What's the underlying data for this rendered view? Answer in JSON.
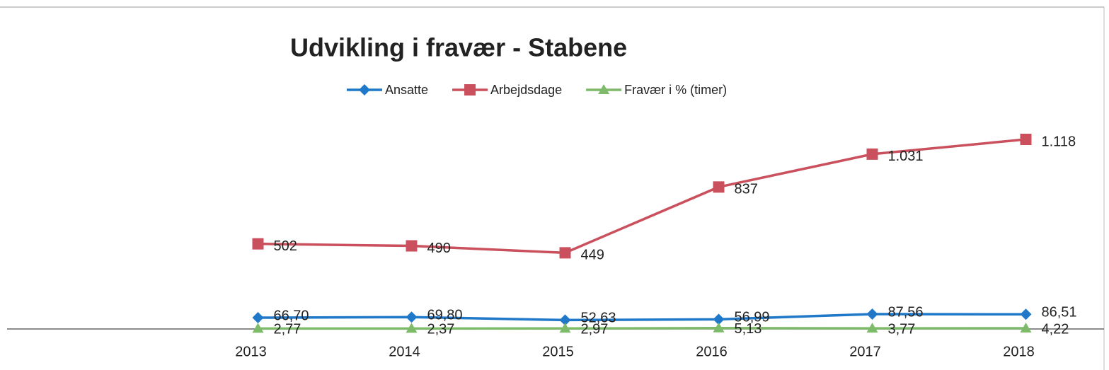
{
  "chart_data": {
    "type": "line",
    "title": "Udvikling i fravær -  Stabene",
    "categories": [
      "2013",
      "2014",
      "2015",
      "2016",
      "2017",
      "2018"
    ],
    "series": [
      {
        "name": "Ansatte",
        "color": "#1f78c8",
        "marker": "diamond",
        "values": [
          66.7,
          69.8,
          52.63,
          56.99,
          87.56,
          86.51
        ],
        "value_labels": [
          "66,70",
          "69,80",
          "52,63",
          "56,99",
          "87,56",
          "86,51"
        ]
      },
      {
        "name": "Arbejdsdage",
        "color": "#c9505c",
        "marker": "square",
        "values": [
          502,
          490,
          449,
          837,
          1031,
          1118
        ],
        "value_labels": [
          "502",
          "490",
          "449",
          "837",
          "1.031",
          "1.118"
        ]
      },
      {
        "name": "Fravær i % (timer)",
        "color": "#7dba6a",
        "marker": "triangle",
        "values": [
          2.77,
          2.37,
          2.97,
          5.13,
          3.77,
          4.22
        ],
        "value_labels": [
          "2,77",
          "2,37",
          "2,97",
          "5,13",
          "3,77",
          "4,22"
        ]
      }
    ]
  }
}
